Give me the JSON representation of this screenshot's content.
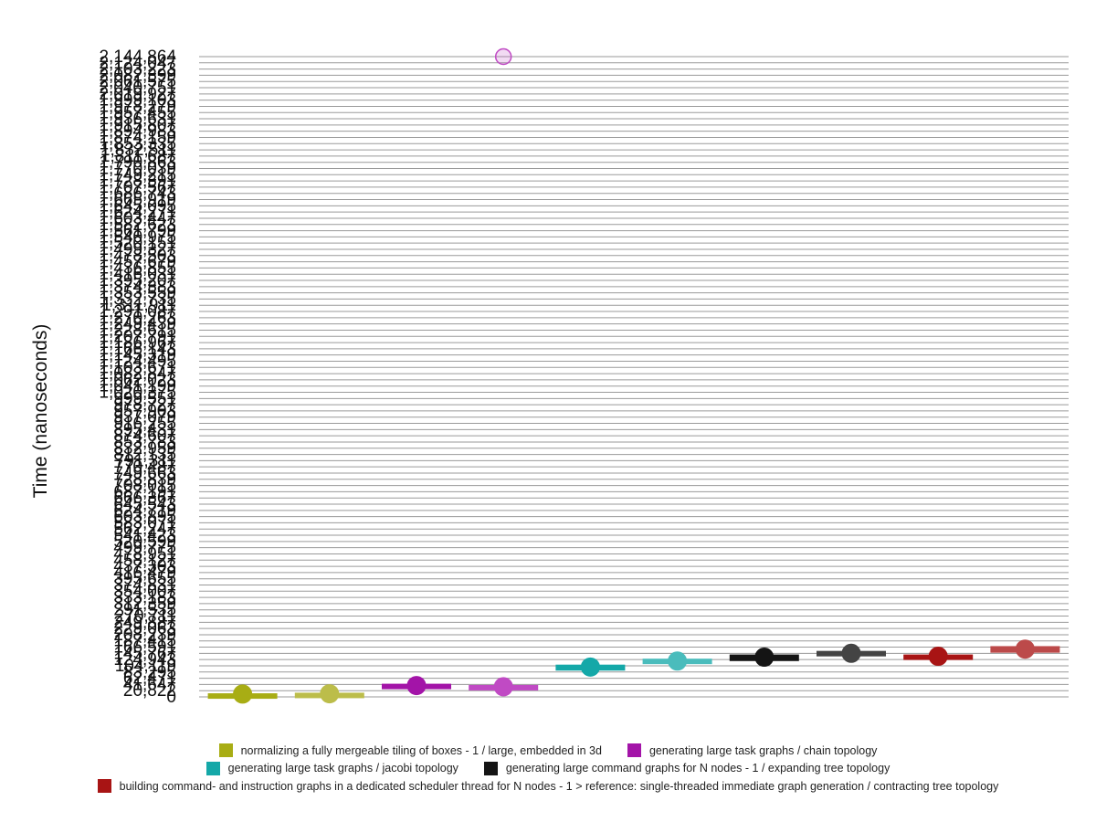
{
  "chart_data": {
    "type": "scatter",
    "ylabel": "Time (nanoseconds)",
    "xlabel": "",
    "ylim": [
      0,
      2144864
    ],
    "grid": true,
    "legend_placement": "bottom",
    "y_ticks": [
      "0",
      "20,822",
      "41,647",
      "62,471",
      "83,295",
      "104,119",
      "124,943",
      "145,767",
      "166,591",
      "187,415",
      "208,239",
      "229,063",
      "249,887",
      "270,711",
      "291,535",
      "312,359",
      "333,183",
      "354,007",
      "374,831",
      "395,655",
      "416,479",
      "437,303",
      "458,127",
      "478,951",
      "499,775",
      "520,599",
      "541,423",
      "562,247",
      "583,071",
      "603,895",
      "624,719",
      "645,543",
      "666,367",
      "687,191",
      "708,015",
      "728,839",
      "749,663",
      "770,487",
      "791,311",
      "812,135",
      "832,959",
      "853,783",
      "874,607",
      "895,431",
      "916,255",
      "937,079",
      "957,903",
      "978,727",
      "999,551",
      "1,020,375",
      "1,041,199",
      "1,062,023",
      "1,082,847",
      "1,103,671",
      "1,124,495",
      "1,145,319",
      "1,166,143",
      "1,186,967",
      "1,207,791",
      "1,228,615",
      "1,249,439",
      "1,270,263",
      "1,291,087",
      "1,311,911",
      "1,332,735",
      "1,353,559",
      "1,374,383",
      "1,395,207",
      "1,416,031",
      "1,436,855",
      "1,457,679",
      "1,478,503",
      "1,499,327",
      "1,520,151",
      "1,540,975",
      "1,561,799",
      "1,582,623",
      "1,603,447",
      "1,624,271",
      "1,645,095",
      "1,665,919",
      "1,686,743",
      "1,707,567",
      "1,728,391",
      "1,749,215",
      "1,770,039",
      "1,790,863",
      "1,811,687",
      "1,832,511",
      "1,853,335",
      "1,874,159",
      "1,894,983",
      "1,915,807",
      "1,936,631",
      "1,957,455",
      "1,978,279",
      "1,999,103",
      "2,019,927",
      "2,040,751",
      "2,061,575",
      "2,082,399",
      "2,103,223",
      "2,124,047",
      "2,144,864"
    ],
    "legend": [
      {
        "label": "normalizing a fully mergeable tiling of boxes - 1 / large, embedded in 3d",
        "color": "#a8ad14"
      },
      {
        "label": "generating large task graphs / chain topology",
        "color": "#a314a8"
      },
      {
        "label": "generating large task graphs / jacobi topology",
        "color": "#14a8a8"
      },
      {
        "label": "generating large command graphs for N nodes - 1 / expanding tree topology",
        "color": "#141414"
      },
      {
        "label": "building command- and instruction graphs in a dedicated scheduler thread for N nodes - 1 > reference: single-threaded immediate graph generation / contracting tree topology",
        "color": "#a81414"
      }
    ],
    "series": [
      {
        "legend_index": 0,
        "variant": "new",
        "color": "#a8ad14",
        "median": 9500,
        "min": 4000,
        "max": 12000,
        "outliers": []
      },
      {
        "legend_index": 0,
        "variant": "old",
        "color": "#bcbd4a",
        "median": 10500,
        "min": 5000,
        "max": 14000,
        "outliers": []
      },
      {
        "legend_index": 1,
        "variant": "new",
        "color": "#a314a8",
        "median": 38000,
        "min": 30000,
        "max": 44000,
        "outliers": []
      },
      {
        "legend_index": 1,
        "variant": "old",
        "color": "#c04ac4",
        "median": 34000,
        "min": 26000,
        "max": 40000,
        "outliers": [
          2144864
        ]
      },
      {
        "legend_index": 2,
        "variant": "new",
        "color": "#14a8a8",
        "median": 100000,
        "min": 88000,
        "max": 108000,
        "outliers": []
      },
      {
        "legend_index": 2,
        "variant": "old",
        "color": "#4abcbc",
        "median": 120000,
        "min": 110000,
        "max": 128000,
        "outliers": []
      },
      {
        "legend_index": 3,
        "variant": "new",
        "color": "#141414",
        "median": 133000,
        "min": 120000,
        "max": 142000,
        "outliers": []
      },
      {
        "legend_index": 3,
        "variant": "old",
        "color": "#444444",
        "median": 146000,
        "min": 136000,
        "max": 154000,
        "outliers": []
      },
      {
        "legend_index": 4,
        "variant": "new",
        "color": "#a81414",
        "median": 136000,
        "min": 124000,
        "max": 142000,
        "outliers": []
      },
      {
        "legend_index": 4,
        "variant": "old",
        "color": "#bc4a4a",
        "median": 160000,
        "min": 148000,
        "max": 170000,
        "outliers": []
      }
    ]
  }
}
